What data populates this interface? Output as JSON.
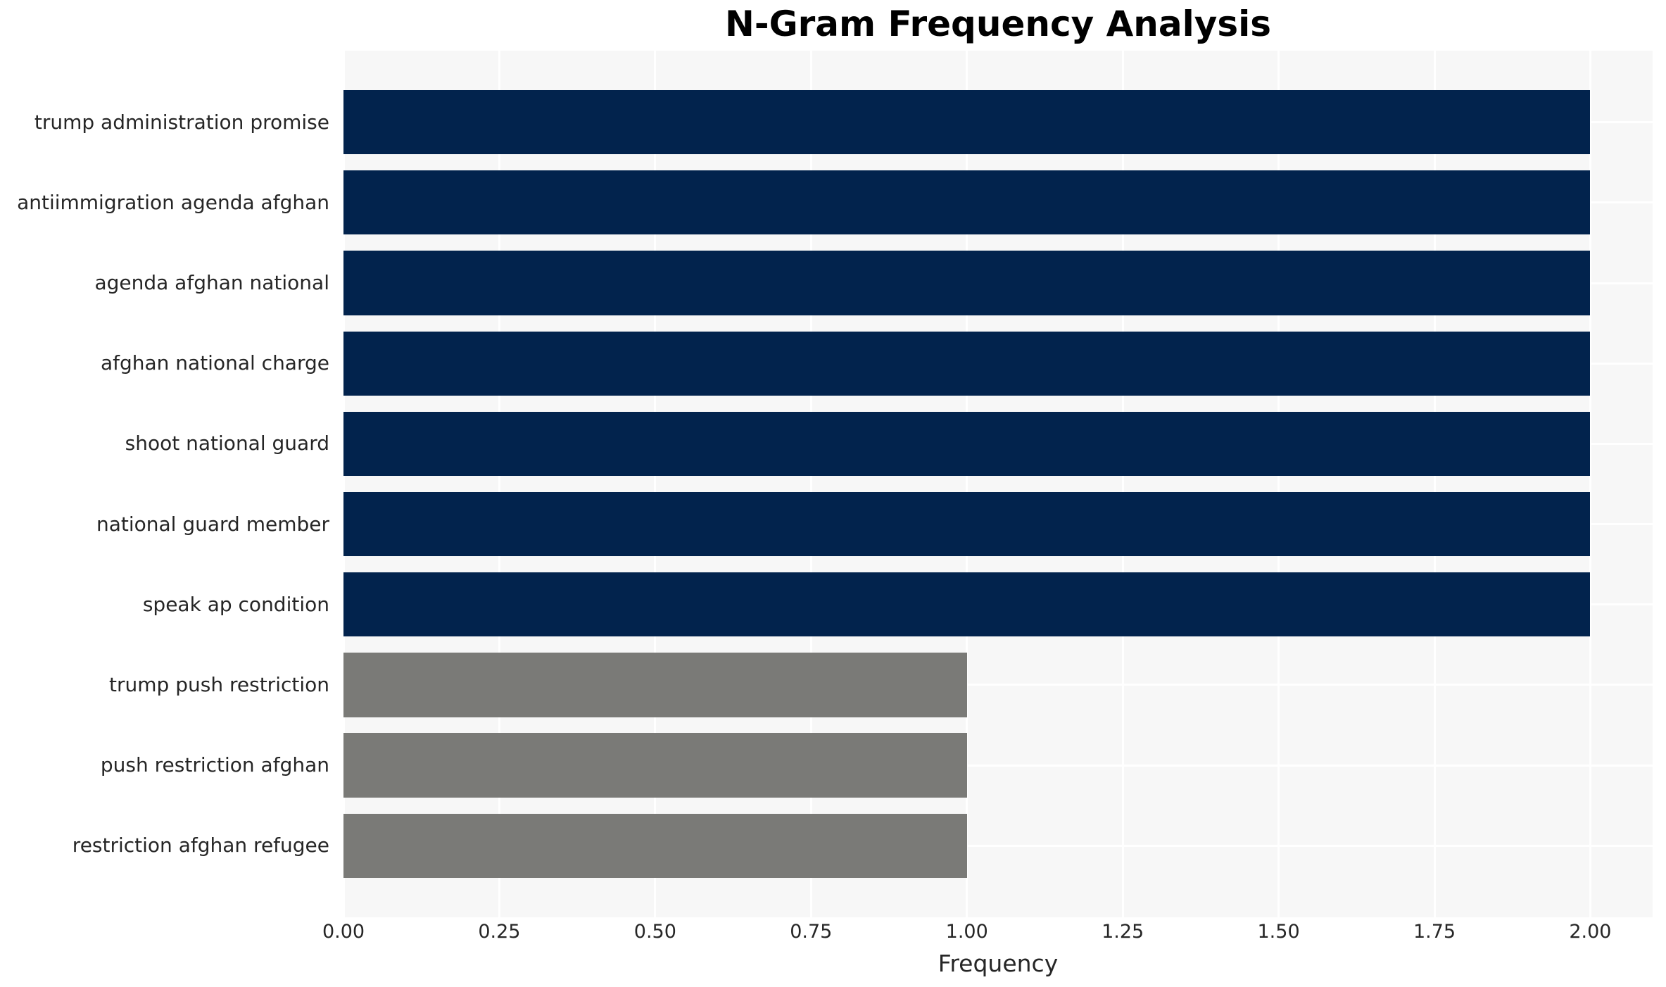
{
  "title": "N-Gram Frequency Analysis",
  "chart_data": {
    "type": "bar",
    "orientation": "horizontal",
    "title": "N-Gram Frequency Analysis",
    "xlabel": "Frequency",
    "ylabel": "",
    "categories": [
      "trump administration promise",
      "antiimmigration agenda afghan",
      "agenda afghan national",
      "afghan national charge",
      "shoot national guard",
      "national guard member",
      "speak ap condition",
      "trump push restriction",
      "push restriction afghan",
      "restriction afghan refugee"
    ],
    "values": [
      2,
      2,
      2,
      2,
      2,
      2,
      2,
      1,
      1,
      1
    ],
    "bar_colors": [
      "#02234d",
      "#02234d",
      "#02234d",
      "#02234d",
      "#02234d",
      "#02234d",
      "#02234d",
      "#7a7a77",
      "#7a7a77",
      "#7a7a77"
    ],
    "xlim": [
      0,
      2.1
    ],
    "xticks": [
      0,
      0.25,
      0.5,
      0.75,
      1.0,
      1.25,
      1.5,
      1.75,
      2.0
    ],
    "xtick_labels": [
      "0.00",
      "0.25",
      "0.50",
      "0.75",
      "1.00",
      "1.25",
      "1.50",
      "1.75",
      "2.00"
    ],
    "grid": true,
    "legend": "none",
    "colors": {
      "high_frequency_bar": "#02234d",
      "low_frequency_bar": "#7a7a77",
      "plot_background": "#f7f7f7",
      "figure_background": "#ffffff",
      "gridline": "#ffffff",
      "axis_text": "#262626",
      "title_text": "#000000"
    }
  }
}
